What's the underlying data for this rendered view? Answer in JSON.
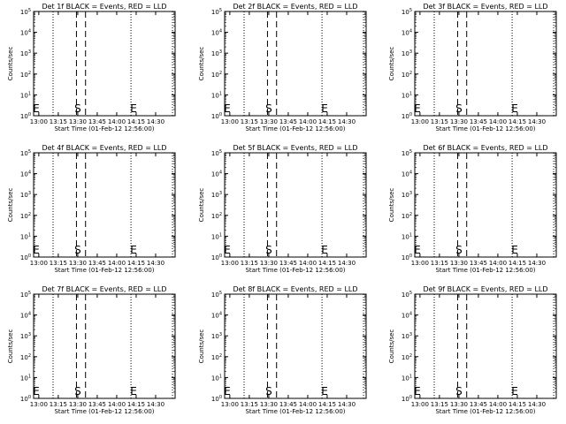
{
  "chart_data": [
    {
      "type": "line",
      "title": "Det 1f BLACK = Events, RED = LLD",
      "xlabel": "Start Time (01-Feb-12 12:56:00)",
      "ylabel": "Counts/sec",
      "xticks": [
        "13:00",
        "13:15",
        "13:30",
        "13:45",
        "14:00",
        "14:15",
        "14:30"
      ],
      "yticks": [
        {
          "base": "10",
          "exp": "0"
        },
        {
          "base": "10",
          "exp": "1"
        },
        {
          "base": "10",
          "exp": "2"
        },
        {
          "base": "10",
          "exp": "3"
        },
        {
          "base": "10",
          "exp": "4"
        },
        {
          "base": "10",
          "exp": "5"
        }
      ],
      "x_range": [
        "12:56",
        "14:45"
      ],
      "y_range": [
        1,
        100000
      ],
      "y_scale": "log",
      "series": [],
      "dotted_lines": [
        "12:56",
        "13:11",
        "14:11",
        "14:43"
      ],
      "dashed_lines": [
        "13:29",
        "13:36"
      ],
      "markers": [
        {
          "text": "E",
          "x": "12:58"
        },
        {
          "text": "S",
          "x": "13:30"
        },
        {
          "text": "E",
          "x": "14:13"
        }
      ]
    },
    {
      "type": "line",
      "title": "Det 2f BLACK = Events, RED = LLD",
      "xlabel": "Start Time (01-Feb-12 12:56:00)",
      "ylabel": "Counts/sec",
      "xticks": [
        "13:00",
        "13:15",
        "13:30",
        "13:45",
        "14:00",
        "14:15",
        "14:30"
      ],
      "yticks": [
        {
          "base": "10",
          "exp": "0"
        },
        {
          "base": "10",
          "exp": "1"
        },
        {
          "base": "10",
          "exp": "2"
        },
        {
          "base": "10",
          "exp": "3"
        },
        {
          "base": "10",
          "exp": "4"
        },
        {
          "base": "10",
          "exp": "5"
        }
      ],
      "x_range": [
        "12:56",
        "14:45"
      ],
      "y_range": [
        1,
        100000
      ],
      "y_scale": "log",
      "series": [],
      "dotted_lines": [
        "12:56",
        "13:11",
        "14:11",
        "14:43"
      ],
      "dashed_lines": [
        "13:29",
        "13:36"
      ],
      "markers": [
        {
          "text": "E",
          "x": "12:58"
        },
        {
          "text": "S",
          "x": "13:30"
        },
        {
          "text": "E",
          "x": "14:13"
        }
      ]
    },
    {
      "type": "line",
      "title": "Det 3f BLACK = Events, RED = LLD",
      "xlabel": "Start Time (01-Feb-12 12:56:00)",
      "ylabel": "Counts/sec",
      "xticks": [
        "13:00",
        "13:15",
        "13:30",
        "13:45",
        "14:00",
        "14:15",
        "14:30"
      ],
      "yticks": [
        {
          "base": "10",
          "exp": "0"
        },
        {
          "base": "10",
          "exp": "1"
        },
        {
          "base": "10",
          "exp": "2"
        },
        {
          "base": "10",
          "exp": "3"
        },
        {
          "base": "10",
          "exp": "4"
        },
        {
          "base": "10",
          "exp": "5"
        }
      ],
      "x_range": [
        "12:56",
        "14:45"
      ],
      "y_range": [
        1,
        100000
      ],
      "y_scale": "log",
      "series": [],
      "dotted_lines": [
        "12:56",
        "13:11",
        "14:11",
        "14:43"
      ],
      "dashed_lines": [
        "13:29",
        "13:36"
      ],
      "markers": [
        {
          "text": "E",
          "x": "12:58"
        },
        {
          "text": "S",
          "x": "13:30"
        },
        {
          "text": "E",
          "x": "14:13"
        }
      ]
    },
    {
      "type": "line",
      "title": "Det 4f BLACK = Events, RED = LLD",
      "xlabel": "Start Time (01-Feb-12 12:56:00)",
      "ylabel": "Counts/sec",
      "xticks": [
        "13:00",
        "13:15",
        "13:30",
        "13:45",
        "14:00",
        "14:15",
        "14:30"
      ],
      "yticks": [
        {
          "base": "10",
          "exp": "0"
        },
        {
          "base": "10",
          "exp": "1"
        },
        {
          "base": "10",
          "exp": "2"
        },
        {
          "base": "10",
          "exp": "3"
        },
        {
          "base": "10",
          "exp": "4"
        },
        {
          "base": "10",
          "exp": "5"
        }
      ],
      "x_range": [
        "12:56",
        "14:45"
      ],
      "y_range": [
        1,
        100000
      ],
      "y_scale": "log",
      "series": [],
      "dotted_lines": [
        "12:56",
        "13:11",
        "14:11",
        "14:43"
      ],
      "dashed_lines": [
        "13:29",
        "13:36"
      ],
      "markers": [
        {
          "text": "E",
          "x": "12:58"
        },
        {
          "text": "S",
          "x": "13:30"
        },
        {
          "text": "E",
          "x": "14:13"
        }
      ]
    },
    {
      "type": "line",
      "title": "Det 5f BLACK = Events, RED = LLD",
      "xlabel": "Start Time (01-Feb-12 12:56:00)",
      "ylabel": "Counts/sec",
      "xticks": [
        "13:00",
        "13:15",
        "13:30",
        "13:45",
        "14:00",
        "14:15",
        "14:30"
      ],
      "yticks": [
        {
          "base": "10",
          "exp": "0"
        },
        {
          "base": "10",
          "exp": "1"
        },
        {
          "base": "10",
          "exp": "2"
        },
        {
          "base": "10",
          "exp": "3"
        },
        {
          "base": "10",
          "exp": "4"
        },
        {
          "base": "10",
          "exp": "5"
        }
      ],
      "x_range": [
        "12:56",
        "14:45"
      ],
      "y_range": [
        1,
        100000
      ],
      "y_scale": "log",
      "series": [],
      "dotted_lines": [
        "12:56",
        "13:11",
        "14:11",
        "14:43"
      ],
      "dashed_lines": [
        "13:29",
        "13:36"
      ],
      "markers": [
        {
          "text": "E",
          "x": "12:58"
        },
        {
          "text": "S",
          "x": "13:30"
        },
        {
          "text": "E",
          "x": "14:13"
        }
      ]
    },
    {
      "type": "line",
      "title": "Det 6f BLACK = Events, RED = LLD",
      "xlabel": "Start Time (01-Feb-12 12:56:00)",
      "ylabel": "Counts/sec",
      "xticks": [
        "13:00",
        "13:15",
        "13:30",
        "13:45",
        "14:00",
        "14:15",
        "14:30"
      ],
      "yticks": [
        {
          "base": "10",
          "exp": "0"
        },
        {
          "base": "10",
          "exp": "1"
        },
        {
          "base": "10",
          "exp": "2"
        },
        {
          "base": "10",
          "exp": "3"
        },
        {
          "base": "10",
          "exp": "4"
        },
        {
          "base": "10",
          "exp": "5"
        }
      ],
      "x_range": [
        "12:56",
        "14:45"
      ],
      "y_range": [
        1,
        100000
      ],
      "y_scale": "log",
      "series": [],
      "dotted_lines": [
        "12:56",
        "13:11",
        "14:11",
        "14:43"
      ],
      "dashed_lines": [
        "13:29",
        "13:36"
      ],
      "markers": [
        {
          "text": "E",
          "x": "12:58"
        },
        {
          "text": "S",
          "x": "13:30"
        },
        {
          "text": "E",
          "x": "14:13"
        }
      ]
    },
    {
      "type": "line",
      "title": "Det 7f BLACK = Events, RED = LLD",
      "xlabel": "Start Time (01-Feb-12 12:56:00)",
      "ylabel": "Counts/sec",
      "xticks": [
        "13:00",
        "13:15",
        "13:30",
        "13:45",
        "14:00",
        "14:15",
        "14:30"
      ],
      "yticks": [
        {
          "base": "10",
          "exp": "0"
        },
        {
          "base": "10",
          "exp": "1"
        },
        {
          "base": "10",
          "exp": "2"
        },
        {
          "base": "10",
          "exp": "3"
        },
        {
          "base": "10",
          "exp": "4"
        },
        {
          "base": "10",
          "exp": "5"
        }
      ],
      "x_range": [
        "12:56",
        "14:45"
      ],
      "y_range": [
        1,
        100000
      ],
      "y_scale": "log",
      "series": [],
      "dotted_lines": [
        "12:56",
        "13:11",
        "14:11",
        "14:43"
      ],
      "dashed_lines": [
        "13:29",
        "13:36"
      ],
      "markers": [
        {
          "text": "E",
          "x": "12:58"
        },
        {
          "text": "S",
          "x": "13:30"
        },
        {
          "text": "E",
          "x": "14:13"
        }
      ]
    },
    {
      "type": "line",
      "title": "Det 8f BLACK = Events, RED = LLD",
      "xlabel": "Start Time (01-Feb-12 12:56:00)",
      "ylabel": "Counts/sec",
      "xticks": [
        "13:00",
        "13:15",
        "13:30",
        "13:45",
        "14:00",
        "14:15",
        "14:30"
      ],
      "yticks": [
        {
          "base": "10",
          "exp": "0"
        },
        {
          "base": "10",
          "exp": "1"
        },
        {
          "base": "10",
          "exp": "2"
        },
        {
          "base": "10",
          "exp": "3"
        },
        {
          "base": "10",
          "exp": "4"
        },
        {
          "base": "10",
          "exp": "5"
        }
      ],
      "x_range": [
        "12:56",
        "14:45"
      ],
      "y_range": [
        1,
        100000
      ],
      "y_scale": "log",
      "series": [],
      "dotted_lines": [
        "12:56",
        "13:11",
        "14:11",
        "14:43"
      ],
      "dashed_lines": [
        "13:29",
        "13:36"
      ],
      "markers": [
        {
          "text": "E",
          "x": "12:58"
        },
        {
          "text": "S",
          "x": "13:30"
        },
        {
          "text": "E",
          "x": "14:13"
        }
      ]
    },
    {
      "type": "line",
      "title": "Det 9f BLACK = Events, RED = LLD",
      "xlabel": "Start Time (01-Feb-12 12:56:00)",
      "ylabel": "Counts/sec",
      "xticks": [
        "13:00",
        "13:15",
        "13:30",
        "13:45",
        "14:00",
        "14:15",
        "14:30"
      ],
      "yticks": [
        {
          "base": "10",
          "exp": "0"
        },
        {
          "base": "10",
          "exp": "1"
        },
        {
          "base": "10",
          "exp": "2"
        },
        {
          "base": "10",
          "exp": "3"
        },
        {
          "base": "10",
          "exp": "4"
        },
        {
          "base": "10",
          "exp": "5"
        }
      ],
      "x_range": [
        "12:56",
        "14:45"
      ],
      "y_range": [
        1,
        100000
      ],
      "y_scale": "log",
      "series": [],
      "dotted_lines": [
        "12:56",
        "13:11",
        "14:11",
        "14:43"
      ],
      "dashed_lines": [
        "13:29",
        "13:36"
      ],
      "markers": [
        {
          "text": "E",
          "x": "12:58"
        },
        {
          "text": "S",
          "x": "13:30"
        },
        {
          "text": "E",
          "x": "14:13"
        }
      ]
    }
  ]
}
